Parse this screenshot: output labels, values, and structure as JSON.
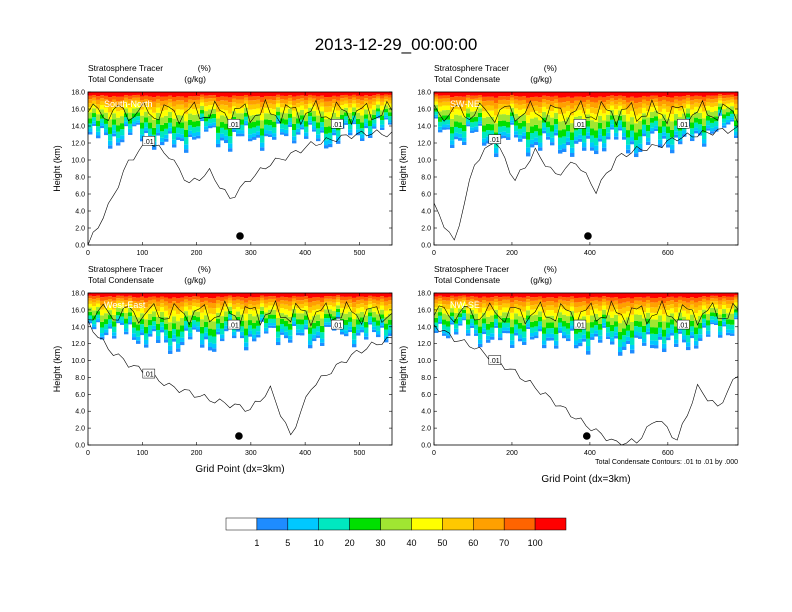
{
  "figure_title": "2013-12-29_00:00:00",
  "colorbar": {
    "levels": [
      "1",
      "5",
      "10",
      "20",
      "30",
      "40",
      "50",
      "60",
      "70",
      "100"
    ],
    "colors": [
      "#ffffff",
      "#1e8cff",
      "#00c8ff",
      "#00e8c0",
      "#00e000",
      "#a0e632",
      "#ffff00",
      "#ffc800",
      "#ffa000",
      "#ff6400",
      "#ff0000"
    ]
  },
  "footnote": "Total Condensate Contours: .01 to .01 by .000",
  "marker_color": "#000000",
  "chart_data": [
    {
      "type": "heatmap",
      "panel": "South-North",
      "title_left_1": "Stratosphere Tracer",
      "title_right_1": "(%)",
      "title_left_2": "Total Condensate",
      "title_right_2": "(g/kg)",
      "ylabel": "Height (km)",
      "xlabel": "",
      "xlim": [
        0,
        560
      ],
      "ylim": [
        0,
        18
      ],
      "xticks": [
        0,
        100,
        200,
        300,
        400,
        500
      ],
      "yticks": [
        "0.0",
        "2.0",
        "4.0",
        "6.0",
        "8.0",
        "10.0",
        "12.0",
        "14.0",
        "16.0",
        "18.0"
      ],
      "contour_label": ".01",
      "marker_x": 280,
      "band_bottom_km": [
        13.0,
        12.4,
        13.2,
        12.8,
        11.6,
        12.6,
        13.4,
        12.0,
        13.0,
        12.2,
        13.6,
        12.8,
        12.4,
        13.2,
        13.6,
        13.8
      ],
      "contour_km": [
        0.0,
        4.5,
        9.8,
        12.2,
        10.5,
        7.2,
        8.6,
        5.4,
        7.8,
        9.6,
        10.6,
        11.8,
        12.4,
        12.9,
        13.2,
        13.0
      ]
    },
    {
      "type": "heatmap",
      "panel": "SW-NE",
      "title_left_1": "Stratosphere Tracer",
      "title_right_1": "(%)",
      "title_left_2": "Total Condensate",
      "title_right_2": "(g/kg)",
      "ylabel": "Height (km)",
      "xlabel": "",
      "xlim": [
        0,
        780
      ],
      "ylim": [
        0,
        18
      ],
      "xticks": [
        0,
        200,
        400,
        600
      ],
      "yticks": [
        "0.0",
        "2.0",
        "4.0",
        "6.0",
        "8.0",
        "10.0",
        "12.0",
        "14.0",
        "16.0",
        "18.0"
      ],
      "contour_label": ".01",
      "marker_x": 395,
      "band_bottom_km": [
        13.4,
        12.6,
        13.0,
        11.8,
        12.8,
        11.4,
        12.2,
        11.0,
        11.8,
        12.6,
        11.4,
        12.4,
        12.0,
        12.8,
        13.6,
        14.0
      ],
      "contour_km": [
        4.6,
        0.3,
        9.6,
        12.4,
        7.6,
        11.0,
        8.2,
        9.8,
        6.4,
        10.2,
        11.2,
        11.6,
        12.6,
        13.0,
        13.4,
        13.6
      ]
    },
    {
      "type": "heatmap",
      "panel": "West-East",
      "title_left_1": "Stratosphere Tracer",
      "title_right_1": "(%)",
      "title_left_2": "Total Condensate",
      "title_right_2": "(g/kg)",
      "ylabel": "Height (km)",
      "xlabel": "Grid Point (dx=3km)",
      "xlim": [
        0,
        560
      ],
      "ylim": [
        0,
        18
      ],
      "xticks": [
        0,
        100,
        200,
        300,
        400,
        500
      ],
      "yticks": [
        "0.0",
        "2.0",
        "4.0",
        "6.0",
        "8.0",
        "10.0",
        "12.0",
        "14.0",
        "16.0",
        "18.0"
      ],
      "contour_label": ".01",
      "marker_x": 278,
      "band_bottom_km": [
        14.0,
        13.6,
        13.2,
        12.6,
        11.8,
        12.8,
        12.0,
        13.2,
        12.6,
        13.4,
        13.0,
        12.4,
        13.6,
        13.2,
        12.8,
        13.6
      ],
      "contour_km": [
        14.4,
        11.4,
        9.6,
        8.4,
        7.0,
        6.2,
        5.4,
        4.8,
        4.2,
        6.6,
        1.0,
        6.8,
        8.8,
        10.6,
        11.8,
        12.6
      ]
    },
    {
      "type": "heatmap",
      "panel": "NW-SE",
      "title_left_1": "Stratosphere Tracer",
      "title_right_1": "(%)",
      "title_left_2": "Total Condensate",
      "title_right_2": "(g/kg)",
      "ylabel": "Height (km)",
      "xlabel": "Grid Point (dx=3km)",
      "xlim": [
        0,
        780
      ],
      "ylim": [
        0,
        18
      ],
      "xticks": [
        0,
        200,
        400,
        600
      ],
      "yticks": [
        "0.0",
        "2.0",
        "4.0",
        "6.0",
        "8.0",
        "10.0",
        "12.0",
        "14.0",
        "16.0",
        "18.0"
      ],
      "contour_label": ".01",
      "marker_x": 392,
      "band_bottom_km": [
        14.0,
        13.6,
        13.2,
        12.4,
        13.0,
        12.2,
        12.8,
        11.8,
        12.6,
        12.0,
        11.6,
        12.4,
        11.8,
        12.6,
        13.4,
        14.2
      ],
      "contour_km": [
        14.2,
        12.6,
        11.6,
        10.0,
        8.6,
        6.8,
        5.0,
        3.2,
        1.6,
        0.2,
        0.4,
        3.2,
        0.6,
        6.8,
        4.4,
        8.4
      ]
    }
  ]
}
